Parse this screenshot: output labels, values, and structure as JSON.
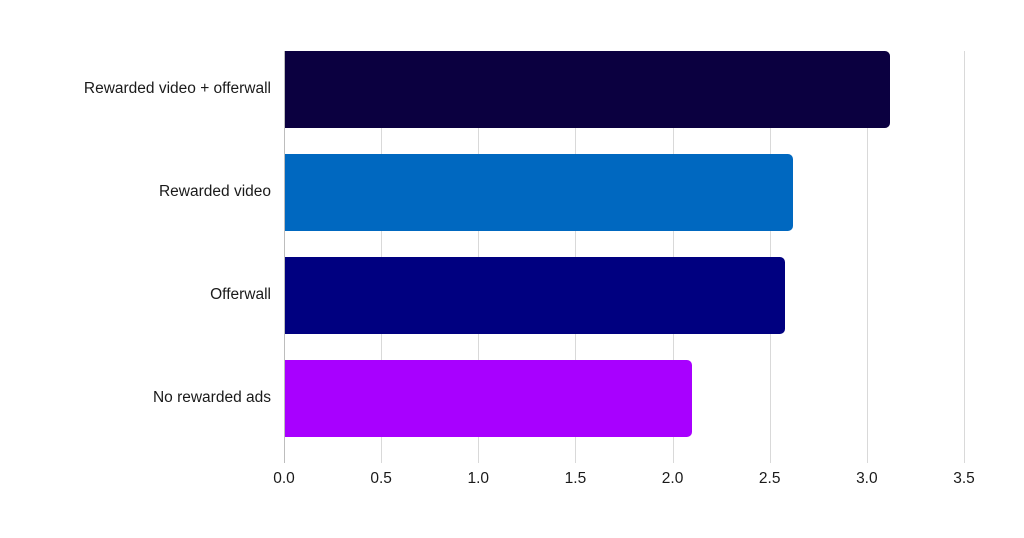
{
  "chart_data": {
    "type": "bar",
    "orientation": "horizontal",
    "title": "",
    "xlabel": "",
    "ylabel": "",
    "categories": [
      "Rewarded video + offerwall",
      "Rewarded video",
      "Offerwall",
      "No rewarded ads"
    ],
    "values": [
      3.12,
      2.62,
      2.58,
      2.1
    ],
    "colors": [
      "#0b0040",
      "#0068c0",
      "#000080",
      "#a800ff"
    ],
    "xlim": [
      0,
      3.5
    ],
    "xticks": [
      "0.0",
      "0.5",
      "1.0",
      "1.5",
      "2.0",
      "2.5",
      "3.0",
      "3.5"
    ],
    "grid": true,
    "legend": false
  }
}
